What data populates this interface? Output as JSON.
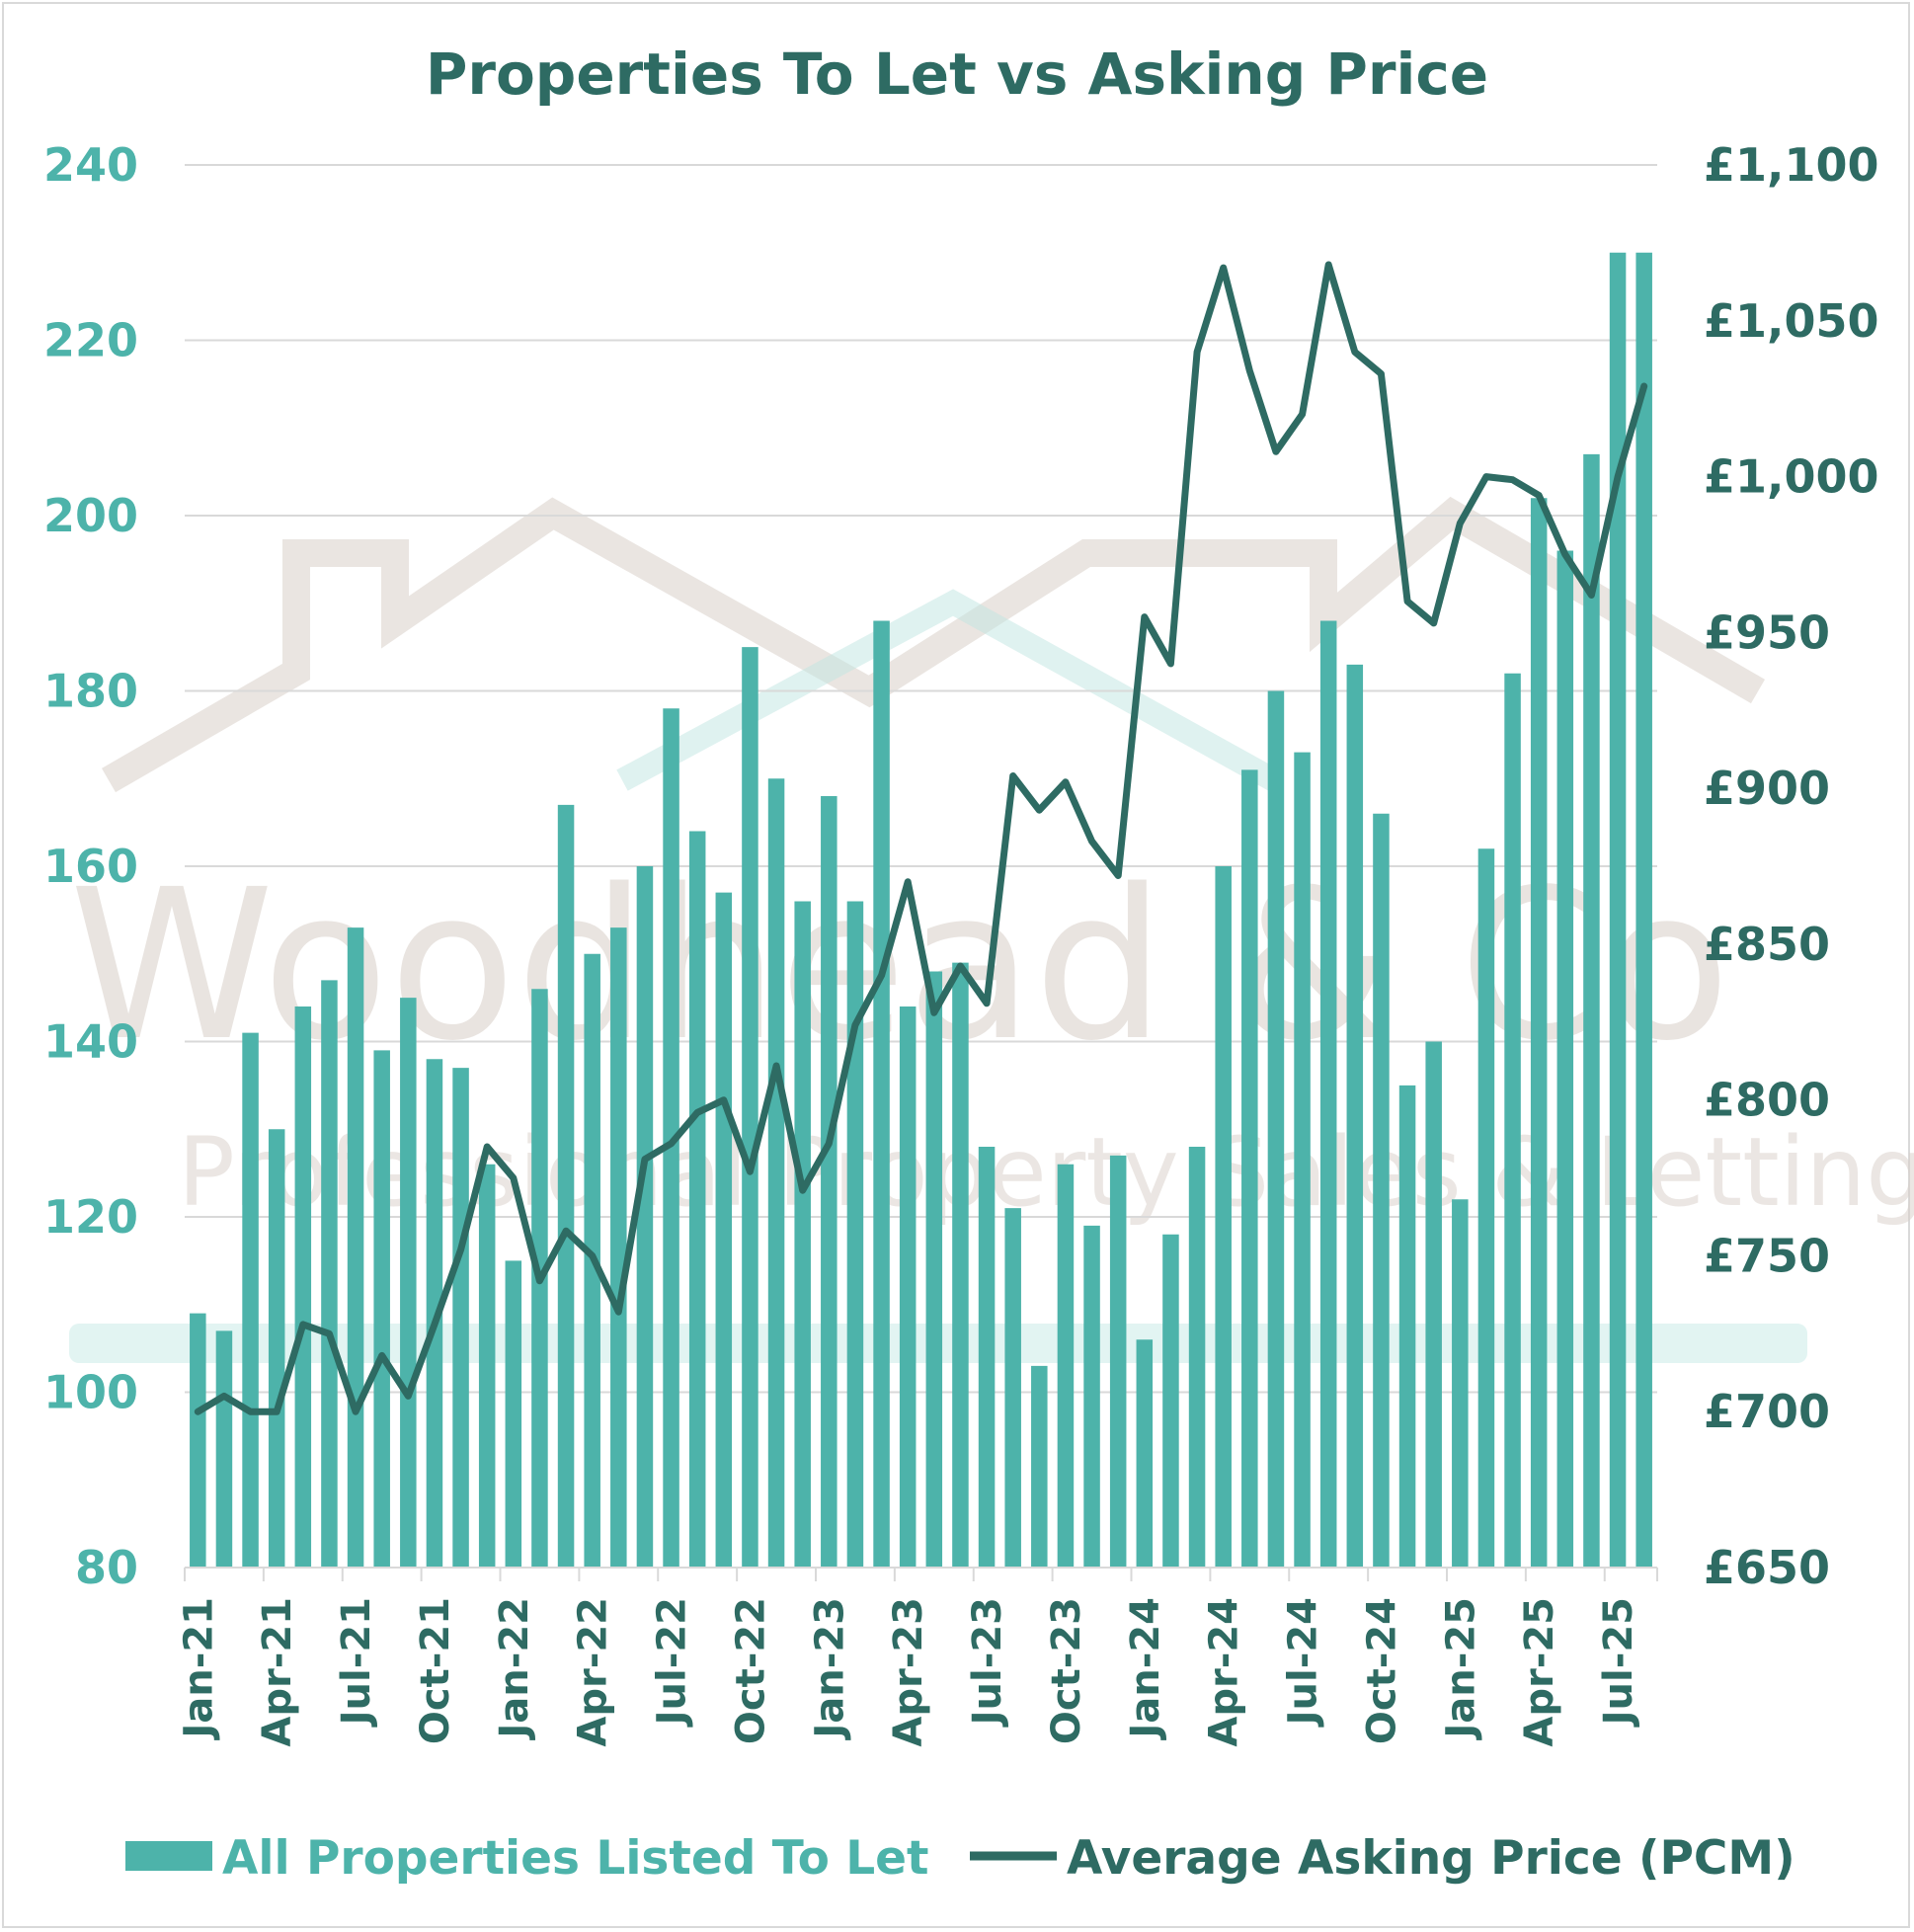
{
  "chart_data": {
    "type": "bar+line",
    "title": "Properties To Let vs Asking Price",
    "left_axis": {
      "ylim": [
        80,
        240
      ],
      "ticks": [
        "80",
        "100",
        "120",
        "140",
        "160",
        "180",
        "200",
        "220",
        "240"
      ]
    },
    "right_axis": {
      "ylim": [
        650,
        1100
      ],
      "ticks": [
        "£650",
        "£700",
        "£750",
        "£800",
        "£850",
        "£900",
        "£950",
        "£1,000",
        "£1,050",
        "£1,100"
      ]
    },
    "x_tick_labels": [
      "Jan-21",
      "Apr-21",
      "Jul-21",
      "Oct-21",
      "Jan-22",
      "Apr-22",
      "Jul-22",
      "Oct-22",
      "Jan-23",
      "Apr-23",
      "Jul-23",
      "Oct-23",
      "Jan-24",
      "Apr-24",
      "Jul-24",
      "Oct-24",
      "Jan-25",
      "Apr-25",
      "Jul-25"
    ],
    "categories": [
      "Jan-21",
      "Feb-21",
      "Mar-21",
      "Apr-21",
      "May-21",
      "Jun-21",
      "Jul-21",
      "Aug-21",
      "Sep-21",
      "Oct-21",
      "Nov-21",
      "Dec-21",
      "Jan-22",
      "Feb-22",
      "Mar-22",
      "Apr-22",
      "May-22",
      "Jun-22",
      "Jul-22",
      "Aug-22",
      "Sep-22",
      "Oct-22",
      "Nov-22",
      "Dec-22",
      "Jan-23",
      "Feb-23",
      "Mar-23",
      "Apr-23",
      "May-23",
      "Jun-23",
      "Jul-23",
      "Aug-23",
      "Sep-23",
      "Oct-23",
      "Nov-23",
      "Dec-23",
      "Jan-24",
      "Feb-24",
      "Mar-24",
      "Apr-24",
      "May-24",
      "Jun-24",
      "Jul-24",
      "Aug-24",
      "Sep-24",
      "Oct-24",
      "Nov-24",
      "Dec-24",
      "Jan-25",
      "Feb-25",
      "Mar-25",
      "Apr-25",
      "May-25",
      "Jun-25",
      "Jul-25",
      "Aug-25"
    ],
    "series": [
      {
        "name": "All Properties Listed To Let",
        "type": "bar",
        "axis": "left",
        "color": "#4db3aa",
        "values": [
          109,
          107,
          141,
          130,
          144,
          147,
          153,
          139,
          145,
          138,
          137,
          126,
          115,
          146,
          167,
          150,
          153,
          160,
          178,
          164,
          157,
          185,
          170,
          156,
          168,
          156,
          188,
          144,
          148,
          149,
          128,
          121,
          103,
          126,
          119,
          127,
          106,
          118,
          128,
          160,
          171,
          180,
          173,
          188,
          183,
          166,
          135,
          140,
          122,
          162,
          182,
          202,
          196,
          207,
          230,
          230
        ]
      },
      {
        "name": "Average Asking Price (PCM)",
        "type": "line",
        "axis": "right",
        "color": "#2e6b63",
        "values": [
          700,
          705,
          700,
          700,
          728,
          725,
          700,
          718,
          705,
          728,
          752,
          785,
          775,
          742,
          758,
          750,
          732,
          781,
          786,
          796,
          800,
          777,
          811,
          771,
          786,
          824,
          840,
          870,
          828,
          843,
          831,
          904,
          893,
          902,
          883,
          872,
          955,
          940,
          1040,
          1067,
          1034,
          1008,
          1020,
          1068,
          1040,
          1033,
          960,
          953,
          985,
          1000,
          999,
          994,
          975,
          962,
          1000,
          1029
        ]
      }
    ],
    "legend_position": "bottom",
    "grid": true
  },
  "legend": {
    "bar_label": "All Properties Listed To Let",
    "line_label": "Average Asking Price (PCM)"
  },
  "watermark": {
    "line1": "Woodhead & Co",
    "line2": "Professional Property Sales & Lettings"
  },
  "colors": {
    "bar": "#4db3aa",
    "line": "#2e6b63",
    "grid": "#d9d9d9"
  }
}
